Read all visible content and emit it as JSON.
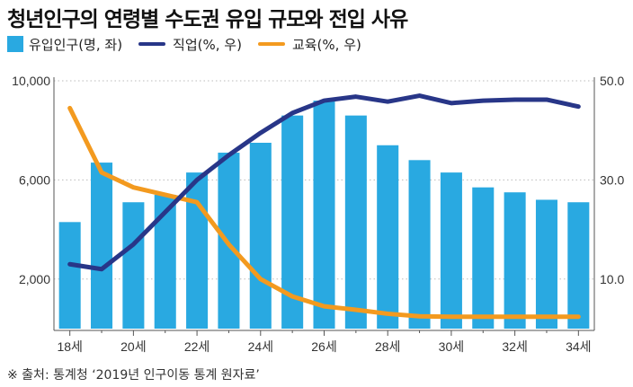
{
  "title": "청년인구의 연령별 수도권 유입 규모와 전입 사유",
  "legend": {
    "bar": "유입인구(명, 좌)",
    "job": "직업(%, 우)",
    "edu": "교육(%, 우)"
  },
  "colors": {
    "bar": "#29a9e1",
    "job": "#283688",
    "edu": "#f39a1f",
    "axis": "#555555",
    "grid": "#bbbbbb"
  },
  "source": "※ 출처: 통계청 ‘2019년 인구이동 통계 원자료’",
  "chart_data": {
    "type": "bar+line",
    "title": "청년인구의 연령별 수도권 유입 규모와 전입 사유",
    "categories": [
      "18세",
      "19세",
      "20세",
      "21세",
      "22세",
      "23세",
      "24세",
      "25세",
      "26세",
      "27세",
      "28세",
      "29세",
      "30세",
      "31세",
      "32세",
      "33세",
      "34세"
    ],
    "x_tick_labels": [
      "18세",
      "20세",
      "22세",
      "24세",
      "26세",
      "28세",
      "30세",
      "32세",
      "34세"
    ],
    "series": [
      {
        "name": "유입인구(명, 좌)",
        "type": "bar",
        "axis": "left",
        "values": [
          4300,
          6700,
          5100,
          5400,
          6300,
          7100,
          7500,
          8600,
          9200,
          8600,
          7400,
          6800,
          6300,
          5700,
          5500,
          5200,
          5100
        ]
      },
      {
        "name": "직업(%, 우)",
        "type": "line",
        "axis": "right",
        "values": [
          13,
          12,
          17,
          23.5,
          30,
          35,
          39.5,
          43.5,
          46,
          46.8,
          45.8,
          47,
          45.5,
          46,
          46.2,
          46.2,
          44.8
        ]
      },
      {
        "name": "교육(%, 우)",
        "type": "line",
        "axis": "right",
        "values": [
          44.5,
          31.5,
          28.5,
          27,
          25.5,
          17,
          10,
          6.5,
          4.5,
          3.8,
          3,
          2.5,
          2.4,
          2.4,
          2.4,
          2.4,
          2.4
        ]
      }
    ],
    "y_left": {
      "ticks": [
        "2,000",
        "6,000",
        "10,000"
      ],
      "tick_values": [
        2000,
        6000,
        10000
      ],
      "ylim": [
        0,
        10000
      ]
    },
    "y_right": {
      "ticks": [
        "10.0",
        "30.0",
        "50.0"
      ],
      "tick_values": [
        10,
        30,
        50
      ],
      "ylim": [
        0,
        50
      ]
    },
    "grid": true,
    "legend_position": "top-left"
  }
}
